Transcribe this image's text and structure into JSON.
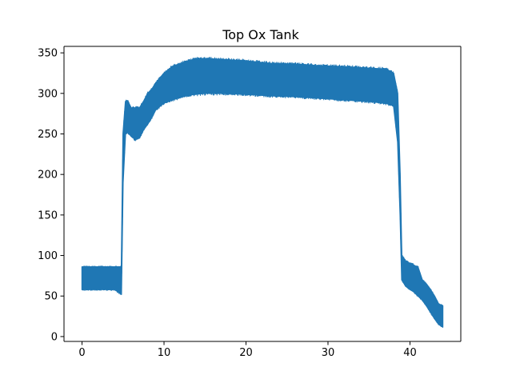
{
  "chart_data": {
    "type": "line",
    "title": "Top Ox Tank",
    "xlabel": "",
    "ylabel": "",
    "xlim": [
      -2.2,
      46.2
    ],
    "ylim": [
      -6,
      358
    ],
    "x_ticks": [
      0,
      10,
      20,
      30,
      40
    ],
    "y_ticks": [
      0,
      50,
      100,
      150,
      200,
      250,
      300,
      350
    ],
    "x_tick_labels": [
      "0",
      "10",
      "20",
      "30",
      "40"
    ],
    "y_tick_labels": [
      "0",
      "50",
      "100",
      "150",
      "200",
      "250",
      "300",
      "350"
    ],
    "grid": false,
    "legend": "none",
    "line_color": "#1f77b4",
    "series": [
      {
        "name": "",
        "x": [
          0.0,
          1.0,
          2.0,
          3.0,
          4.0,
          4.8,
          5.0,
          5.3,
          5.6,
          6.0,
          6.5,
          7.0,
          7.5,
          8.0,
          8.5,
          9.0,
          10.0,
          11.0,
          12.0,
          13.0,
          14.0,
          15.0,
          17.0,
          20.0,
          23.0,
          26.0,
          29.0,
          32.0,
          35.0,
          37.0,
          38.0,
          38.5,
          38.8,
          39.0,
          39.5,
          40.0,
          40.5,
          41.0,
          41.5,
          42.0,
          42.5,
          43.0,
          43.5,
          44.0
        ],
        "y_max": [
          86,
          86,
          86,
          86,
          86,
          86,
          250,
          290,
          290,
          282,
          282,
          282,
          290,
          300,
          305,
          313,
          325,
          333,
          337,
          340,
          343,
          343,
          342,
          340,
          337,
          336,
          334,
          333,
          331,
          330,
          325,
          300,
          200,
          100,
          93,
          90,
          88,
          85,
          70,
          65,
          58,
          50,
          40,
          38
        ],
        "y_min": [
          58,
          58,
          58,
          58,
          58,
          52,
          190,
          250,
          252,
          247,
          243,
          245,
          255,
          262,
          270,
          280,
          288,
          292,
          295,
          298,
          299,
          300,
          300,
          299,
          297,
          296,
          294,
          292,
          290,
          288,
          285,
          240,
          150,
          70,
          62,
          58,
          55,
          50,
          45,
          38,
          30,
          22,
          15,
          12
        ]
      }
    ]
  }
}
